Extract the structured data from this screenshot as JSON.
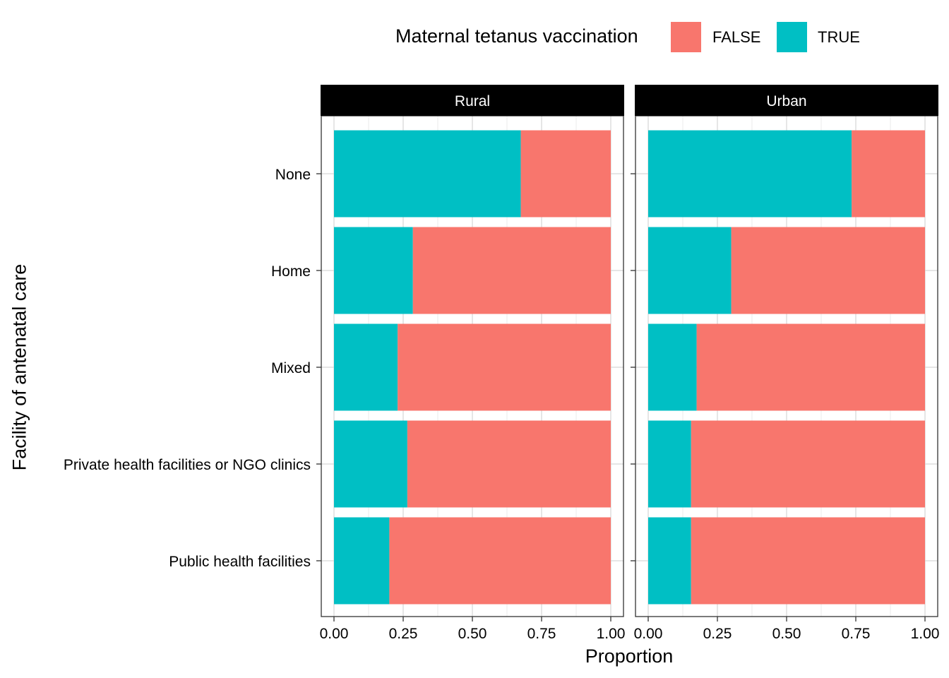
{
  "chart_data": {
    "type": "bar",
    "orientation": "horizontal",
    "stacked": true,
    "legend": {
      "title": "Maternal tetanus vaccination",
      "placement": "top",
      "items": [
        {
          "label": "FALSE",
          "color": "#F8766D"
        },
        {
          "label": "TRUE",
          "color": "#00BFC4"
        }
      ]
    },
    "xlabel": "Proportion",
    "ylabel": "Facility of antenatal care",
    "xlim": [
      0,
      1
    ],
    "xticks": [
      "0.00",
      "0.25",
      "0.50",
      "0.75",
      "1.00"
    ],
    "tick_values": [
      0,
      0.25,
      0.5,
      0.75,
      1.0
    ],
    "categories": [
      "None",
      "Home",
      "Mixed",
      "Private health facilities or NGO clinics",
      "Public health facilities"
    ],
    "facets": [
      {
        "label": "Rural",
        "series": [
          {
            "name": "TRUE",
            "values": [
              0.675,
              0.285,
              0.23,
              0.265,
              0.2
            ]
          },
          {
            "name": "FALSE",
            "values": [
              0.325,
              0.715,
              0.77,
              0.735,
              0.8
            ]
          }
        ]
      },
      {
        "label": "Urban",
        "series": [
          {
            "name": "TRUE",
            "values": [
              0.735,
              0.3,
              0.175,
              0.155,
              0.155
            ]
          },
          {
            "name": "FALSE",
            "values": [
              0.265,
              0.7,
              0.825,
              0.845,
              0.845
            ]
          }
        ]
      }
    ]
  }
}
